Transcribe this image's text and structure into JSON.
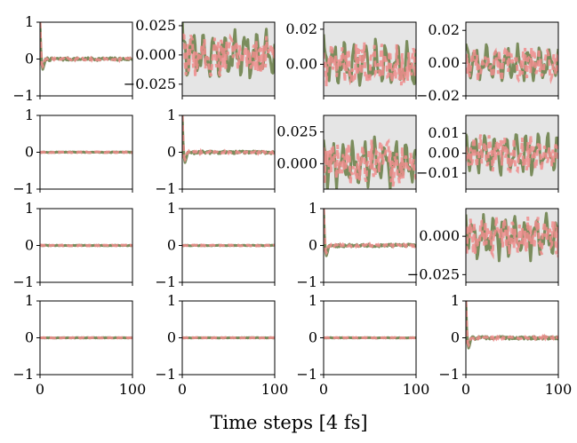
{
  "chart_data": {
    "type": "line",
    "layout": "4x4 grid of subplots",
    "xlabel": "Time steps [4 fs]",
    "x_range": [
      0,
      100
    ],
    "x_ticks": [
      "0",
      "100"
    ],
    "colors": {
      "series_solid": "#7a8c5c",
      "series_dashed": "#f08c8c",
      "shaded_background": "#e5e5e5",
      "axis": "#000000"
    },
    "series_names": [
      "solid (green)",
      "dashed (pink)"
    ],
    "panels": [
      {
        "row": 0,
        "col": 0,
        "ylim": [
          -1,
          1
        ],
        "yticks": [
          "1",
          "0",
          "−1"
        ],
        "shaded": false,
        "signal": "decay",
        "amp": 1.0
      },
      {
        "row": 0,
        "col": 1,
        "ylim": [
          -0.035,
          0.028
        ],
        "yticks": [
          "0.025",
          "0.000",
          "−0.025"
        ],
        "shaded": true,
        "signal": "noise",
        "amp": 0.022
      },
      {
        "row": 0,
        "col": 2,
        "ylim": [
          -0.018,
          0.024
        ],
        "yticks": [
          "0.02",
          "0.00"
        ],
        "shaded": true,
        "signal": "noise",
        "amp": 0.014
      },
      {
        "row": 0,
        "col": 3,
        "ylim": [
          -0.02,
          0.025
        ],
        "yticks": [
          "0.02",
          "0.00",
          "−0.02"
        ],
        "shaded": true,
        "signal": "noise",
        "amp": 0.012
      },
      {
        "row": 1,
        "col": 0,
        "ylim": [
          -1,
          1
        ],
        "yticks": [
          "1",
          "0",
          "−1"
        ],
        "shaded": false,
        "signal": "flat",
        "amp": 0.02
      },
      {
        "row": 1,
        "col": 1,
        "ylim": [
          -1,
          1
        ],
        "yticks": [
          "1",
          "0",
          "−1"
        ],
        "shaded": false,
        "signal": "decay",
        "amp": 1.0
      },
      {
        "row": 1,
        "col": 2,
        "ylim": [
          -0.02,
          0.038
        ],
        "yticks": [
          "0.025",
          "0.000"
        ],
        "shaded": true,
        "signal": "noise",
        "amp": 0.02
      },
      {
        "row": 1,
        "col": 3,
        "ylim": [
          -0.018,
          0.019
        ],
        "yticks": [
          "0.01",
          "0.00",
          "−0.01"
        ],
        "shaded": true,
        "signal": "noise",
        "amp": 0.011
      },
      {
        "row": 2,
        "col": 0,
        "ylim": [
          -1,
          1
        ],
        "yticks": [
          "1",
          "0",
          "−1"
        ],
        "shaded": false,
        "signal": "flat",
        "amp": 0.02
      },
      {
        "row": 2,
        "col": 1,
        "ylim": [
          -1,
          1
        ],
        "yticks": [
          "1",
          "0",
          "−1"
        ],
        "shaded": false,
        "signal": "flat",
        "amp": 0.02
      },
      {
        "row": 2,
        "col": 2,
        "ylim": [
          -1,
          1
        ],
        "yticks": [
          "1",
          "0",
          "−1"
        ],
        "shaded": false,
        "signal": "decay",
        "amp": 1.0
      },
      {
        "row": 2,
        "col": 3,
        "ylim": [
          -0.03,
          0.018
        ],
        "yticks": [
          "0.000",
          "−0.025"
        ],
        "shaded": true,
        "signal": "noise",
        "amp": 0.015
      },
      {
        "row": 3,
        "col": 0,
        "ylim": [
          -1,
          1
        ],
        "yticks": [
          "1",
          "0",
          "−1"
        ],
        "shaded": false,
        "signal": "flat",
        "amp": 0.01
      },
      {
        "row": 3,
        "col": 1,
        "ylim": [
          -1,
          1
        ],
        "yticks": [
          "1",
          "0",
          "−1"
        ],
        "shaded": false,
        "signal": "flat",
        "amp": 0.01
      },
      {
        "row": 3,
        "col": 2,
        "ylim": [
          -1,
          1
        ],
        "yticks": [
          "1",
          "0",
          "−1"
        ],
        "shaded": false,
        "signal": "flat",
        "amp": 0.01
      },
      {
        "row": 3,
        "col": 3,
        "ylim": [
          -1,
          1
        ],
        "yticks": [
          "1",
          "0",
          "−1"
        ],
        "shaded": false,
        "signal": "decay",
        "amp": 1.0
      }
    ]
  }
}
